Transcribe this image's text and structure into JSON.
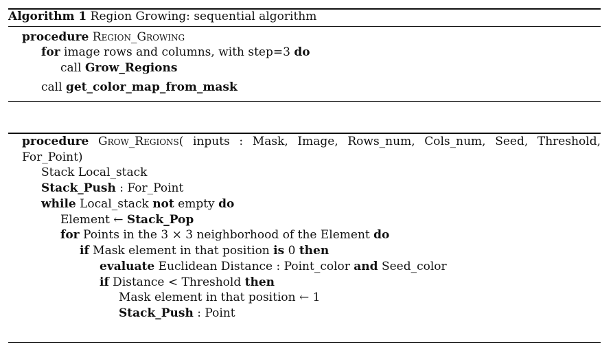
{
  "header": {
    "label": "Algorithm 1",
    "title": "Region Growing: sequential algorithm"
  },
  "algo1": {
    "proc_kw": "procedure",
    "proc_name": "Region_Growing",
    "for_kw": "for",
    "for_text": "image rows and columns, with step=3",
    "do_kw": "do",
    "call1_kw": "call",
    "call1_name": "Grow_Regions",
    "call2_kw": "call",
    "call2_name": "get_color_map_from_mask"
  },
  "algo2": {
    "proc_kw": "procedure",
    "proc_name": "Grow_Regions",
    "proc_args": "( inputs : Mask, Image, Rows_num, Cols_num, Seed, Threshold,",
    "proc_args_cont": "For_Point)",
    "stack_decl": "Stack Local_stack",
    "push1_kw": "Stack_Push",
    "push1_arg": " : For_Point",
    "while_kw": "while",
    "while_text": " Local_stack ",
    "not_kw": "not",
    "while_text2": " empty ",
    "while_do": "do",
    "pop_text": "Element ← ",
    "pop_kw": "Stack_Pop",
    "for_kw": "for",
    "for_text": " Points in the 3 × 3 neighborhood of the Element ",
    "for_do": "do",
    "if1_kw": "if",
    "if1_text": " Mask element in that position ",
    "is_kw": "is",
    "if1_val": " 0 ",
    "then1_kw": "then",
    "eval_kw": "evaluate",
    "eval_text": " Euclidean Distance : Point_color ",
    "and_kw": "and",
    "eval_text2": " Seed_color",
    "if2_kw": "if",
    "if2_text": " Distance < Threshold ",
    "then2_kw": "then",
    "assign_text": "Mask element in that position ← 1",
    "push2_kw": "Stack_Push",
    "push2_arg": " : Point"
  }
}
